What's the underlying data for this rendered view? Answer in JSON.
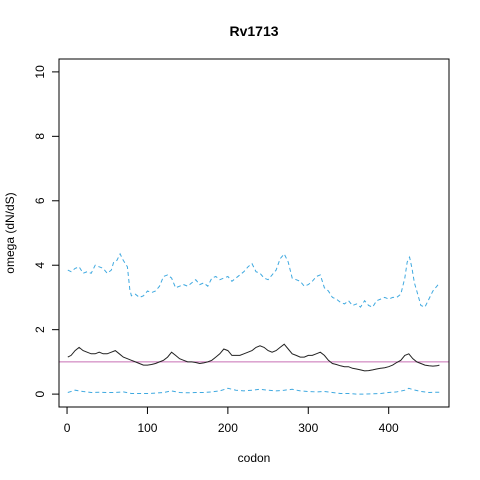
{
  "chart_data": {
    "type": "line",
    "title": "Rv1713",
    "xlabel": "codon",
    "ylabel": "omega (dN/dS)",
    "xlim": [
      -10,
      475
    ],
    "ylim": [
      -0.4,
      10.4
    ],
    "x_ticks": [
      0,
      100,
      200,
      300,
      400
    ],
    "y_ticks": [
      0,
      2,
      4,
      6,
      8,
      10
    ],
    "reference_line": {
      "y": 1,
      "color": "#c86fb4"
    },
    "grid": false,
    "series": [
      {
        "style": "dashed",
        "color": "#3fa9e0",
        "x": [
          1,
          5,
          10,
          15,
          20,
          25,
          30,
          35,
          40,
          45,
          50,
          55,
          58,
          62,
          66,
          70,
          75,
          78,
          80,
          85,
          90,
          95,
          100,
          105,
          110,
          115,
          120,
          125,
          130,
          135,
          140,
          145,
          150,
          155,
          160,
          165,
          170,
          175,
          180,
          185,
          190,
          195,
          200,
          205,
          210,
          215,
          220,
          225,
          230,
          235,
          240,
          245,
          250,
          255,
          260,
          265,
          270,
          275,
          280,
          285,
          290,
          295,
          300,
          305,
          310,
          315,
          320,
          325,
          330,
          335,
          340,
          345,
          350,
          355,
          360,
          365,
          370,
          375,
          380,
          385,
          390,
          395,
          400,
          405,
          410,
          415,
          420,
          423,
          426,
          429,
          432,
          435,
          440,
          445,
          450,
          455,
          460,
          463
        ],
        "y": [
          3.85,
          3.8,
          3.9,
          3.95,
          3.75,
          3.8,
          3.75,
          4.0,
          3.95,
          3.9,
          3.75,
          3.85,
          4.1,
          4.15,
          4.35,
          4.15,
          3.95,
          3.25,
          3.05,
          3.1,
          3.0,
          3.05,
          3.2,
          3.15,
          3.2,
          3.35,
          3.65,
          3.7,
          3.6,
          3.3,
          3.35,
          3.4,
          3.35,
          3.45,
          3.55,
          3.4,
          3.45,
          3.35,
          3.6,
          3.65,
          3.55,
          3.6,
          3.65,
          3.5,
          3.6,
          3.7,
          3.8,
          3.95,
          4.05,
          3.8,
          3.75,
          3.6,
          3.55,
          3.7,
          3.85,
          4.2,
          4.35,
          4.1,
          3.6,
          3.55,
          3.5,
          3.35,
          3.4,
          3.5,
          3.65,
          3.7,
          3.3,
          3.2,
          3.0,
          2.95,
          2.85,
          2.8,
          2.9,
          2.75,
          2.8,
          2.7,
          2.9,
          2.75,
          2.7,
          2.9,
          2.95,
          3.0,
          2.95,
          3.0,
          3.0,
          3.1,
          3.6,
          4.1,
          4.25,
          3.9,
          3.45,
          3.2,
          2.75,
          2.7,
          2.95,
          3.2,
          3.35,
          3.45
        ]
      },
      {
        "style": "solid",
        "color": "#222222",
        "x": [
          1,
          5,
          10,
          15,
          20,
          25,
          30,
          35,
          40,
          45,
          50,
          55,
          60,
          65,
          70,
          75,
          80,
          85,
          90,
          95,
          100,
          105,
          110,
          115,
          120,
          125,
          130,
          135,
          140,
          145,
          150,
          155,
          160,
          165,
          170,
          175,
          180,
          185,
          190,
          195,
          200,
          205,
          210,
          215,
          220,
          225,
          230,
          235,
          240,
          245,
          250,
          255,
          260,
          265,
          270,
          275,
          280,
          285,
          290,
          295,
          300,
          305,
          310,
          315,
          320,
          325,
          330,
          335,
          340,
          345,
          350,
          355,
          360,
          365,
          370,
          375,
          380,
          385,
          390,
          395,
          400,
          405,
          410,
          415,
          420,
          425,
          430,
          435,
          440,
          445,
          450,
          455,
          460,
          463
        ],
        "y": [
          1.15,
          1.2,
          1.35,
          1.45,
          1.35,
          1.3,
          1.25,
          1.25,
          1.3,
          1.25,
          1.25,
          1.3,
          1.35,
          1.25,
          1.15,
          1.1,
          1.05,
          1.0,
          0.95,
          0.9,
          0.9,
          0.92,
          0.95,
          1.0,
          1.05,
          1.15,
          1.3,
          1.2,
          1.1,
          1.05,
          1.0,
          1.0,
          0.98,
          0.95,
          0.97,
          1.0,
          1.05,
          1.15,
          1.25,
          1.4,
          1.35,
          1.2,
          1.2,
          1.2,
          1.25,
          1.3,
          1.35,
          1.45,
          1.5,
          1.45,
          1.35,
          1.3,
          1.35,
          1.45,
          1.55,
          1.4,
          1.25,
          1.2,
          1.15,
          1.15,
          1.2,
          1.2,
          1.25,
          1.3,
          1.2,
          1.05,
          0.95,
          0.92,
          0.88,
          0.85,
          0.85,
          0.8,
          0.78,
          0.75,
          0.72,
          0.73,
          0.75,
          0.78,
          0.8,
          0.82,
          0.85,
          0.9,
          0.98,
          1.05,
          1.2,
          1.25,
          1.1,
          1.0,
          0.95,
          0.9,
          0.88,
          0.87,
          0.88,
          0.9
        ]
      },
      {
        "style": "dashed",
        "color": "#3fa9e0",
        "x": [
          1,
          10,
          20,
          30,
          40,
          50,
          60,
          70,
          80,
          90,
          100,
          110,
          120,
          130,
          140,
          150,
          160,
          170,
          180,
          190,
          200,
          210,
          220,
          230,
          240,
          250,
          260,
          270,
          280,
          290,
          300,
          310,
          320,
          330,
          340,
          350,
          360,
          370,
          380,
          390,
          400,
          410,
          420,
          425,
          430,
          440,
          450,
          460,
          463
        ],
        "y": [
          0.05,
          0.12,
          0.08,
          0.05,
          0.06,
          0.05,
          0.05,
          0.07,
          0.02,
          0.02,
          0.02,
          0.03,
          0.05,
          0.1,
          0.05,
          0.04,
          0.05,
          0.05,
          0.07,
          0.1,
          0.18,
          0.12,
          0.1,
          0.12,
          0.15,
          0.12,
          0.1,
          0.12,
          0.15,
          0.1,
          0.08,
          0.07,
          0.08,
          0.05,
          0.02,
          0.02,
          0.0,
          0.0,
          0.01,
          0.02,
          0.05,
          0.07,
          0.12,
          0.18,
          0.14,
          0.08,
          0.05,
          0.06,
          0.06
        ]
      }
    ]
  }
}
